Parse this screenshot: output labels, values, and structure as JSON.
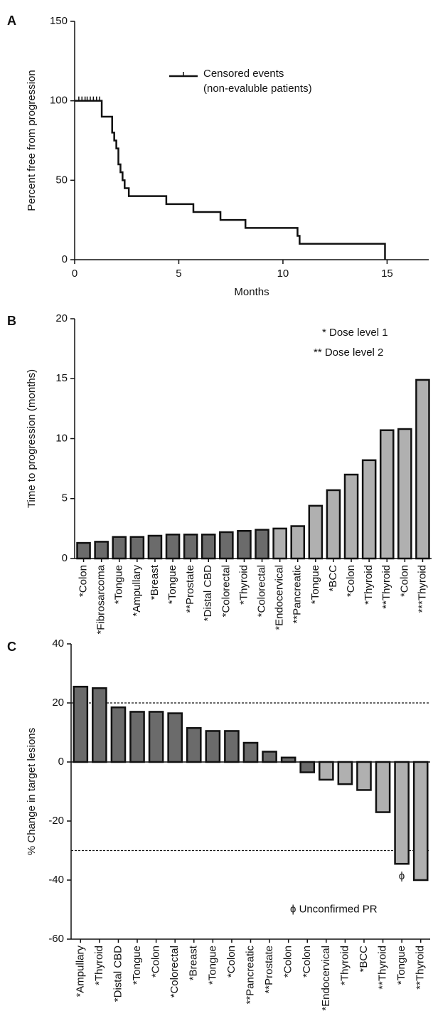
{
  "chart_data": [
    {
      "type": "line",
      "panel_label": "A",
      "y_label": "Percent free from progression",
      "x_label": "Months",
      "xlim": [
        0,
        17
      ],
      "xticks": [
        0,
        5,
        10,
        15
      ],
      "ylim": [
        0,
        150
      ],
      "yticks": [
        0,
        50,
        100,
        150
      ],
      "x": [
        0,
        1.3,
        1.8,
        1.9,
        2.0,
        2.1,
        2.2,
        2.3,
        2.4,
        2.6,
        4.4,
        5.7,
        7.0,
        8.2,
        10.7,
        10.8,
        14.9,
        14.9
      ],
      "values": [
        100,
        90,
        80,
        75,
        70,
        60,
        55,
        50,
        45,
        40,
        35,
        30,
        25,
        20,
        15,
        10,
        5,
        0
      ],
      "censored_x": [
        0.2,
        0.35,
        0.5,
        0.6,
        0.75,
        0.9,
        1.05,
        1.2
      ],
      "censored_values": [
        100,
        100,
        100,
        100,
        100,
        100,
        100,
        100
      ],
      "legend": [
        "Censored events",
        "(non-evaluble patients)"
      ],
      "color": "#111"
    },
    {
      "type": "bar",
      "panel_label": "B",
      "y_label": "Time to progression (months)",
      "ylim": [
        0,
        20
      ],
      "yticks": [
        0,
        5,
        10,
        15,
        20
      ],
      "categories": [
        "*Colon",
        "*Fibrosarcoma",
        "*Tongue",
        "*Ampullary",
        "*Breast",
        "*Tongue",
        "**Prostate",
        "*Distal CBD",
        "*Colorectal",
        "*Thyroid",
        "*Colorectal",
        "*Endocervical",
        "**Pancreatic",
        "*Tongue",
        "*BCC",
        "*Colon",
        "*Thyroid",
        "**Thyroid",
        "*Colon",
        "***Thyroid"
      ],
      "values": [
        1.3,
        1.4,
        1.8,
        1.8,
        1.9,
        2.0,
        2.0,
        2.0,
        2.2,
        2.3,
        2.4,
        2.5,
        2.7,
        4.4,
        5.7,
        7.0,
        8.2,
        10.7,
        10.8,
        14.9
      ],
      "colors": [
        "#6b6b6b",
        "#6b6b6b",
        "#6b6b6b",
        "#6b6b6b",
        "#6b6b6b",
        "#6b6b6b",
        "#6b6b6b",
        "#6b6b6b",
        "#6b6b6b",
        "#6b6b6b",
        "#6b6b6b",
        "#b0b0b0",
        "#b0b0b0",
        "#b0b0b0",
        "#b0b0b0",
        "#b0b0b0",
        "#b0b0b0",
        "#b0b0b0",
        "#b0b0b0",
        "#b0b0b0"
      ],
      "annotations": [
        "* Dose level 1",
        "** Dose level 2"
      ]
    },
    {
      "type": "bar",
      "panel_label": "C",
      "y_label": "% Change in target lesions",
      "ylim": [
        -60,
        40
      ],
      "yticks": [
        -60,
        -40,
        -20,
        0,
        20,
        40
      ],
      "reference_lines": [
        20,
        -30
      ],
      "categories": [
        "*Ampullary",
        "*Thyroid",
        "*Distal CBD",
        "*Tongue",
        "*Colon",
        "*Colorectal",
        "*Breast",
        "*Tongue",
        "*Colon",
        "**Pancreatic",
        "**Prostate",
        "*Colon",
        "*Colon",
        "*Endocervical",
        "*Thyroid",
        "*BCC",
        "**Thyroid",
        "*Tongue",
        "**Thyroid"
      ],
      "values": [
        25.5,
        25,
        18.5,
        17,
        17,
        16.5,
        11.5,
        10.5,
        10.5,
        6.5,
        3.5,
        1.5,
        -3.5,
        -6,
        -7.5,
        -9.5,
        -17,
        -34.5,
        -40
      ],
      "colors": [
        "#6b6b6b",
        "#6b6b6b",
        "#6b6b6b",
        "#6b6b6b",
        "#6b6b6b",
        "#6b6b6b",
        "#6b6b6b",
        "#6b6b6b",
        "#6b6b6b",
        "#6b6b6b",
        "#6b6b6b",
        "#6b6b6b",
        "#6b6b6b",
        "#b0b0b0",
        "#b0b0b0",
        "#b0b0b0",
        "#b0b0b0",
        "#b0b0b0",
        "#b0b0b0"
      ],
      "marker": "ϕ",
      "marker_index": 17,
      "annotations": [
        "ϕ  Unconfirmed PR"
      ]
    }
  ]
}
